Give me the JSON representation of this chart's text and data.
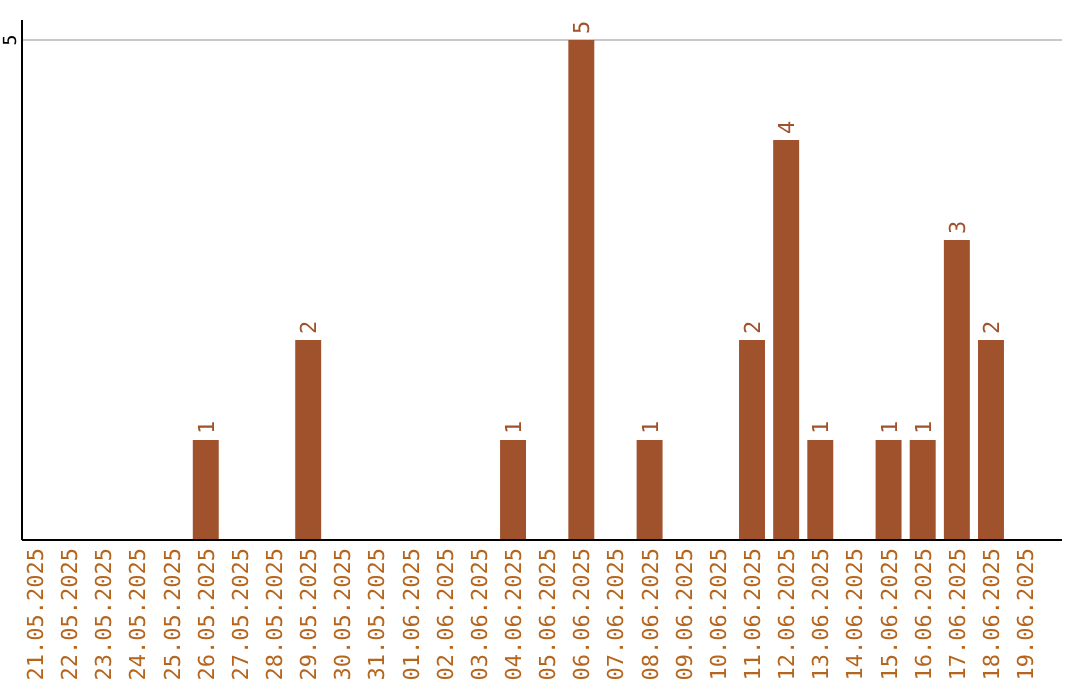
{
  "chart_data": {
    "type": "bar",
    "categories": [
      "21.05.2025",
      "22.05.2025",
      "23.05.2025",
      "24.05.2025",
      "25.05.2025",
      "26.05.2025",
      "27.05.2025",
      "28.05.2025",
      "29.05.2025",
      "30.05.2025",
      "31.05.2025",
      "01.06.2025",
      "02.06.2025",
      "03.06.2025",
      "04.06.2025",
      "05.06.2025",
      "06.06.2025",
      "07.06.2025",
      "08.06.2025",
      "09.06.2025",
      "10.06.2025",
      "11.06.2025",
      "12.06.2025",
      "13.06.2025",
      "14.06.2025",
      "15.06.2025",
      "16.06.2025",
      "17.06.2025",
      "18.06.2025",
      "19.06.2025"
    ],
    "values": [
      0,
      0,
      0,
      0,
      0,
      1,
      0,
      0,
      2,
      0,
      0,
      0,
      0,
      0,
      1,
      0,
      5,
      0,
      1,
      0,
      0,
      2,
      4,
      1,
      0,
      1,
      1,
      3,
      2,
      0
    ],
    "value_labels": [
      null,
      null,
      null,
      null,
      null,
      "1",
      null,
      null,
      "2",
      null,
      null,
      null,
      null,
      null,
      "1",
      null,
      "5",
      null,
      "1",
      null,
      null,
      "2",
      "4",
      "1",
      null,
      "1",
      "1",
      "3",
      "2",
      null
    ],
    "color": "#a0522d",
    "ylim": [
      0,
      5
    ],
    "yticks": [
      5
    ],
    "ref_lines": [
      {
        "axis": "y",
        "value": 5,
        "color": "#c8c8c8"
      }
    ]
  }
}
